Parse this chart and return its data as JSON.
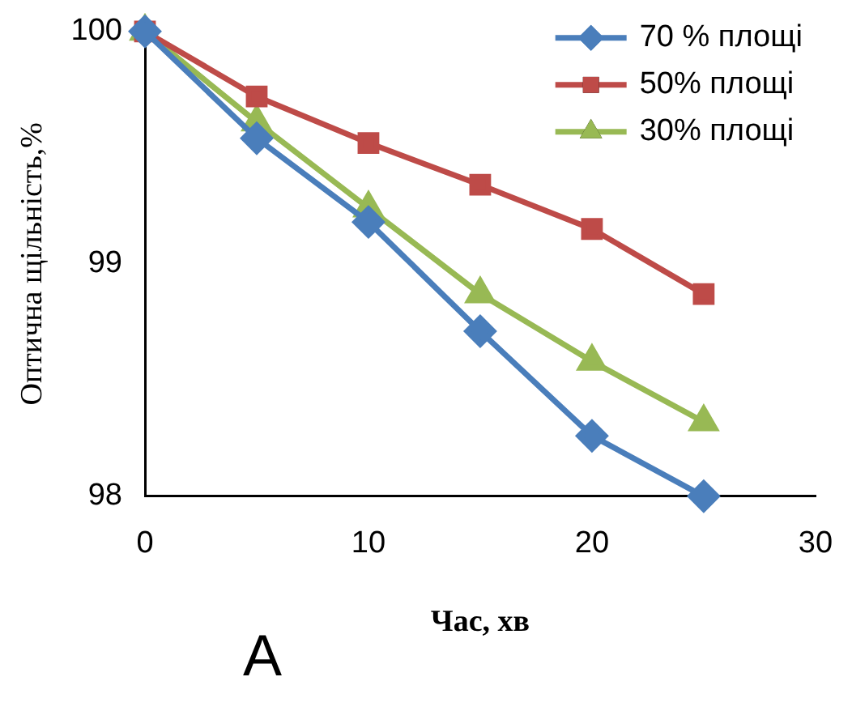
{
  "chart_data": {
    "type": "line",
    "xlabel": "Час, хв",
    "ylabel": "Оптична щільність,%",
    "x": [
      0,
      5,
      10,
      15,
      20,
      25
    ],
    "series": [
      {
        "name": "70 % площі",
        "color": "#4a7ebb",
        "marker": "diamond",
        "values": [
          100,
          99.54,
          99.18,
          98.71,
          98.26,
          98
        ]
      },
      {
        "name": "50% площі",
        "color": "#be4b48",
        "marker": "square",
        "values": [
          100,
          99.72,
          99.52,
          99.34,
          99.15,
          98.87
        ]
      },
      {
        "name": "30% площі",
        "color": "#98b954",
        "marker": "triangle",
        "values": [
          100,
          99.61,
          99.24,
          98.87,
          98.58,
          98.32
        ]
      }
    ],
    "xlim": [
      0,
      30
    ],
    "xticks": [
      0,
      10,
      20,
      30
    ],
    "ylim": [
      98,
      100
    ],
    "yticks": [
      98,
      99,
      100
    ],
    "grid": false,
    "legend": "top right",
    "annotations": [
      "А"
    ]
  }
}
